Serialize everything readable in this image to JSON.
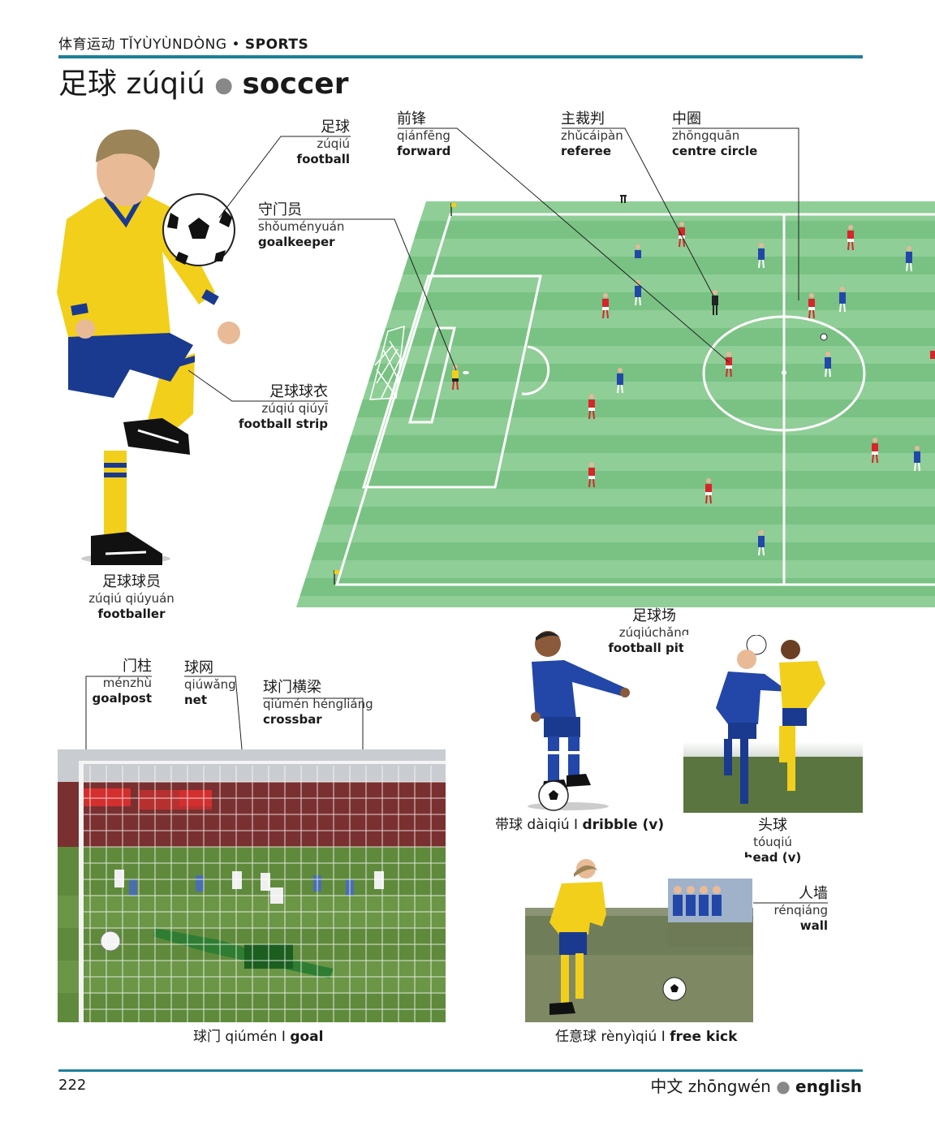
{
  "header": {
    "section_zh": "体育运动",
    "section_py": "TǏYÙYÙNDÒNG",
    "sep": "•",
    "section_en": "SPORTS"
  },
  "title": {
    "zh": "足球",
    "py": "zúqiú",
    "sep": "●",
    "en": "soccer"
  },
  "labels": {
    "football": {
      "zh": "足球",
      "py": "zúqiú",
      "en": "football"
    },
    "goalkeeper": {
      "zh": "守门员",
      "py": "shǒuményuán",
      "en": "goalkeeper"
    },
    "forward": {
      "zh": "前锋",
      "py": "qiánfēng",
      "en": "forward"
    },
    "referee": {
      "zh": "主裁判",
      "py": "zhǔcáipàn",
      "en": "referee"
    },
    "centre_circle": {
      "zh": "中圈",
      "py": "zhōngquān",
      "en": "centre circle"
    },
    "football_strip": {
      "zh": "足球球衣",
      "py": "zúqiú qiúyī",
      "en": "football strip"
    },
    "footballer": {
      "zh": "足球球员",
      "py": "zúqiú qiúyuán",
      "en": "footballer"
    },
    "football_pitch": {
      "zh": "足球场",
      "py": "zúqiúchǎng",
      "en": "football pitch"
    },
    "goalpost": {
      "zh": "门柱",
      "py": "ménzhù",
      "en": "goalpost"
    },
    "net": {
      "zh": "球网",
      "py": "qiúwǎng",
      "en": "net"
    },
    "crossbar": {
      "zh": "球门横梁",
      "py": "qiúmén héngliáng",
      "en": "crossbar"
    },
    "head": {
      "zh": "头球",
      "py": "tóuqiú",
      "en": "head (v)"
    },
    "wall": {
      "zh": "人墙",
      "py": "rénqiáng",
      "en": "wall"
    }
  },
  "captions": {
    "dribble": {
      "zh": "带球",
      "py": "dàiqiú",
      "sep": "I",
      "en": "dribble (v)"
    },
    "goal": {
      "zh": "球门",
      "py": "qiúmén",
      "sep": "I",
      "en": "goal"
    },
    "free_kick": {
      "zh": "任意球",
      "py": "rènyìqiú",
      "sep": "I",
      "en": "free kick"
    }
  },
  "footer": {
    "page_number": "222",
    "lang_zh": "中文",
    "lang_py": "zhōngwén",
    "sep": "●",
    "lang_en": "english"
  },
  "colors": {
    "rule": "#1f7f9a",
    "pitch_light": "#8fce96",
    "pitch_dark": "#79c283",
    "team_red": "#d8252a",
    "team_blue": "#2247a8",
    "kit_yellow": "#f2cf1b"
  }
}
